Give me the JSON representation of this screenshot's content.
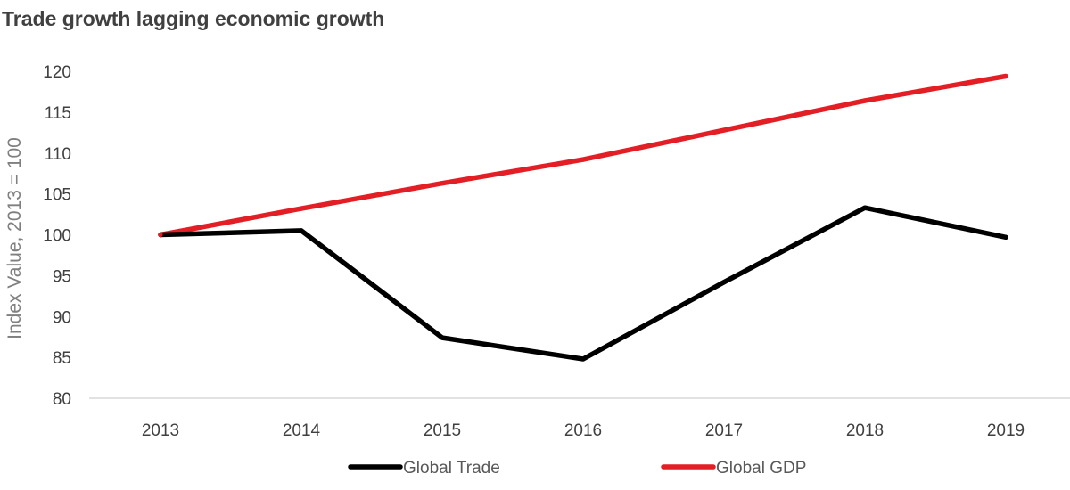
{
  "chart_data": {
    "type": "line",
    "title": "Trade growth lagging economic growth",
    "xlabel": "",
    "ylabel": "Index Value, 2013 = 100",
    "categories": [
      "2013",
      "2014",
      "2015",
      "2016",
      "2017",
      "2018",
      "2019"
    ],
    "ylim": [
      80,
      120
    ],
    "yticks": [
      80,
      85,
      90,
      95,
      100,
      105,
      110,
      115,
      120
    ],
    "grid": false,
    "legend_position": "bottom",
    "series": [
      {
        "name": "Global Trade",
        "color": "#000000",
        "values": [
          100.0,
          100.5,
          87.4,
          84.8,
          94.2,
          103.3,
          99.7
        ]
      },
      {
        "name": "Global GDP",
        "color": "#e31e24",
        "values": [
          100.0,
          103.2,
          106.3,
          109.2,
          112.8,
          116.4,
          119.4
        ]
      }
    ]
  }
}
